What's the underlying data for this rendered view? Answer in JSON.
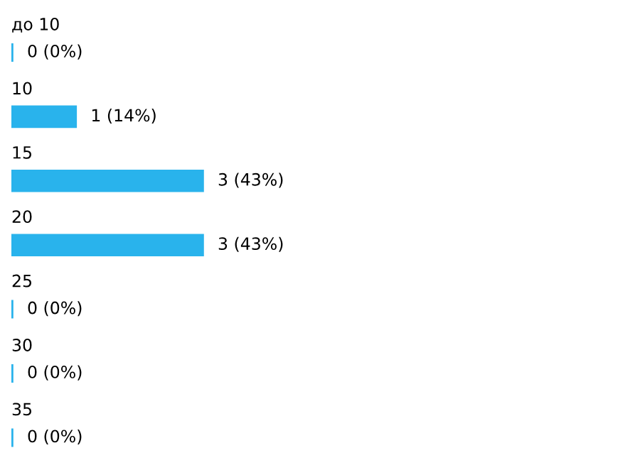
{
  "chart_data": {
    "type": "bar",
    "orientation": "horizontal",
    "categories": [
      "до 10",
      "10",
      "15",
      "20",
      "25",
      "30",
      "35"
    ],
    "values": [
      0,
      1,
      3,
      3,
      0,
      0,
      0
    ],
    "value_labels": [
      "0 (0%)",
      "1 (14%)",
      "3 (43%)",
      "3 (43%)",
      "0 (0%)",
      "0 (0%)",
      "0 (0%)"
    ],
    "color": "#29b3ec"
  }
}
